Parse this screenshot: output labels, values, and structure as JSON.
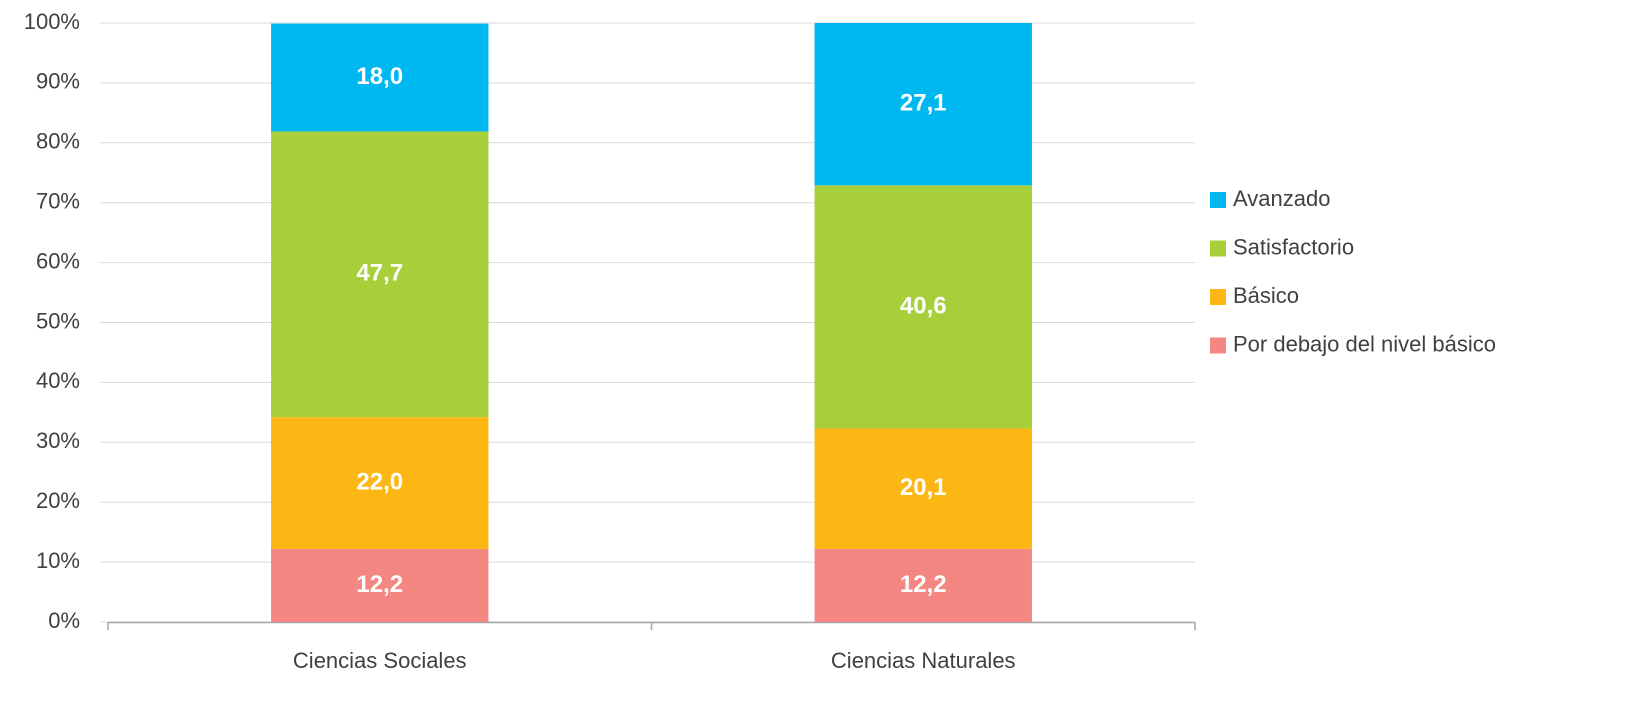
{
  "chart_data": {
    "type": "stacked_bar",
    "categories": [
      "Ciencias Sociales",
      "Ciencias Naturales"
    ],
    "series": [
      {
        "name": "Por debajo del nivel básico",
        "color": "#f48782",
        "values": [
          12.2,
          12.2
        ],
        "value_labels": [
          "12,2",
          "12,2"
        ]
      },
      {
        "name": "Básico",
        "color": "#fcb715",
        "values": [
          22.0,
          20.1
        ],
        "value_labels": [
          "22,0",
          "20,1"
        ]
      },
      {
        "name": "Satisfactorio",
        "color": "#a7cf3a",
        "values": [
          47.7,
          40.6
        ],
        "value_labels": [
          "47,7",
          "40,6"
        ]
      },
      {
        "name": "Avanzado",
        "color": "#00b8f0",
        "values": [
          18.0,
          27.1
        ],
        "value_labels": [
          "18,0",
          "27,1"
        ]
      }
    ],
    "ylim": [
      0,
      100
    ],
    "yticks": [
      {
        "value": 0,
        "label": "0%"
      },
      {
        "value": 10,
        "label": "10%"
      },
      {
        "value": 20,
        "label": "20%"
      },
      {
        "value": 30,
        "label": "30%"
      },
      {
        "value": 40,
        "label": "40%"
      },
      {
        "value": 50,
        "label": "50%"
      },
      {
        "value": 60,
        "label": "60%"
      },
      {
        "value": 70,
        "label": "70%"
      },
      {
        "value": 80,
        "label": "80%"
      },
      {
        "value": 90,
        "label": "90%"
      },
      {
        "value": 100,
        "label": "100%"
      }
    ],
    "grid": true,
    "legend": "right"
  }
}
